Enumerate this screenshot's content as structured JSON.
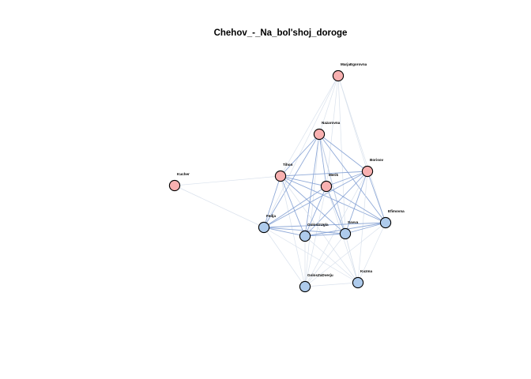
{
  "title": "Chehov_-_Na_bol'shoj_doroge",
  "colors": {
    "group_a": "#f8b0b0",
    "group_b": "#aecbec",
    "node_stroke": "#000000",
    "edge_light": "#d5deea",
    "edge_strong": "#7c9bd1"
  },
  "nodes": [
    {
      "id": "MarjaEgorovna",
      "label": "MarjaEgorovna",
      "group": "a"
    },
    {
      "id": "Nazarovna",
      "label": "Nazarovna",
      "group": "a"
    },
    {
      "id": "Borisov",
      "label": "Borisov",
      "group": "a"
    },
    {
      "id": "Tihon",
      "label": "Tihon",
      "group": "a"
    },
    {
      "id": "Merik",
      "label": "Merik",
      "group": "a"
    },
    {
      "id": "Kucher",
      "label": "Kucher",
      "group": "a"
    },
    {
      "id": "Fedja",
      "label": "Fedja",
      "group": "b"
    },
    {
      "id": "GolosIzUgla",
      "label": "GolosIzUgla",
      "group": "b"
    },
    {
      "id": "Savva",
      "label": "Savva",
      "group": "b"
    },
    {
      "id": "Efimovna",
      "label": "Efimovna",
      "group": "b"
    },
    {
      "id": "GolosZaDverju",
      "label": "GolosZaDverju",
      "group": "b"
    },
    {
      "id": "Kuzma",
      "label": "Kuzma",
      "group": "b"
    }
  ],
  "edges": [
    {
      "source": "MarjaEgorovna",
      "target": "Nazarovna",
      "strength": "light"
    },
    {
      "source": "MarjaEgorovna",
      "target": "Borisov",
      "strength": "light"
    },
    {
      "source": "MarjaEgorovna",
      "target": "Tihon",
      "strength": "light"
    },
    {
      "source": "MarjaEgorovna",
      "target": "Merik",
      "strength": "light"
    },
    {
      "source": "MarjaEgorovna",
      "target": "Efimovna",
      "strength": "light"
    },
    {
      "source": "MarjaEgorovna",
      "target": "Savva",
      "strength": "light"
    },
    {
      "source": "MarjaEgorovna",
      "target": "Fedja",
      "strength": "light"
    },
    {
      "source": "Kucher",
      "target": "Tihon",
      "strength": "light"
    },
    {
      "source": "Kucher",
      "target": "Fedja",
      "strength": "light"
    },
    {
      "source": "Nazarovna",
      "target": "Tihon",
      "strength": "strong"
    },
    {
      "source": "Nazarovna",
      "target": "Borisov",
      "strength": "strong"
    },
    {
      "source": "Nazarovna",
      "target": "Merik",
      "strength": "strong"
    },
    {
      "source": "Nazarovna",
      "target": "Fedja",
      "strength": "strong"
    },
    {
      "source": "Nazarovna",
      "target": "GolosIzUgla",
      "strength": "strong"
    },
    {
      "source": "Nazarovna",
      "target": "Savva",
      "strength": "strong"
    },
    {
      "source": "Nazarovna",
      "target": "Efimovna",
      "strength": "strong"
    },
    {
      "source": "Nazarovna",
      "target": "Kuzma",
      "strength": "light"
    },
    {
      "source": "Nazarovna",
      "target": "GolosZaDverju",
      "strength": "light"
    },
    {
      "source": "Tihon",
      "target": "Borisov",
      "strength": "strong"
    },
    {
      "source": "Tihon",
      "target": "Merik",
      "strength": "strong"
    },
    {
      "source": "Tihon",
      "target": "Fedja",
      "strength": "strong"
    },
    {
      "source": "Tihon",
      "target": "GolosIzUgla",
      "strength": "strong"
    },
    {
      "source": "Tihon",
      "target": "Savva",
      "strength": "strong"
    },
    {
      "source": "Tihon",
      "target": "Efimovna",
      "strength": "strong"
    },
    {
      "source": "Tihon",
      "target": "Kuzma",
      "strength": "light"
    },
    {
      "source": "Tihon",
      "target": "GolosZaDverju",
      "strength": "light"
    },
    {
      "source": "Borisov",
      "target": "Merik",
      "strength": "strong"
    },
    {
      "source": "Borisov",
      "target": "Fedja",
      "strength": "strong"
    },
    {
      "source": "Borisov",
      "target": "GolosIzUgla",
      "strength": "strong"
    },
    {
      "source": "Borisov",
      "target": "Savva",
      "strength": "strong"
    },
    {
      "source": "Borisov",
      "target": "Efimovna",
      "strength": "strong"
    },
    {
      "source": "Borisov",
      "target": "Kuzma",
      "strength": "light"
    },
    {
      "source": "Borisov",
      "target": "GolosZaDverju",
      "strength": "light"
    },
    {
      "source": "Merik",
      "target": "Fedja",
      "strength": "strong"
    },
    {
      "source": "Merik",
      "target": "GolosIzUgla",
      "strength": "strong"
    },
    {
      "source": "Merik",
      "target": "Savva",
      "strength": "strong"
    },
    {
      "source": "Merik",
      "target": "Efimovna",
      "strength": "strong"
    },
    {
      "source": "Merik",
      "target": "Kuzma",
      "strength": "light"
    },
    {
      "source": "Merik",
      "target": "GolosZaDverju",
      "strength": "light"
    },
    {
      "source": "Fedja",
      "target": "GolosIzUgla",
      "strength": "strong"
    },
    {
      "source": "Fedja",
      "target": "Savva",
      "strength": "strong"
    },
    {
      "source": "Fedja",
      "target": "Efimovna",
      "strength": "strong"
    },
    {
      "source": "Fedja",
      "target": "GolosZaDverju",
      "strength": "light"
    },
    {
      "source": "Fedja",
      "target": "Kuzma",
      "strength": "light"
    },
    {
      "source": "GolosIzUgla",
      "target": "Savva",
      "strength": "strong"
    },
    {
      "source": "GolosIzUgla",
      "target": "Efimovna",
      "strength": "strong"
    },
    {
      "source": "GolosIzUgla",
      "target": "GolosZaDverju",
      "strength": "light"
    },
    {
      "source": "GolosIzUgla",
      "target": "Kuzma",
      "strength": "light"
    },
    {
      "source": "Savva",
      "target": "Efimovna",
      "strength": "strong"
    },
    {
      "source": "Savva",
      "target": "GolosZaDverju",
      "strength": "light"
    },
    {
      "source": "Savva",
      "target": "Kuzma",
      "strength": "light"
    },
    {
      "source": "Efimovna",
      "target": "GolosZaDverju",
      "strength": "light"
    },
    {
      "source": "Efimovna",
      "target": "Kuzma",
      "strength": "light"
    },
    {
      "source": "GolosZaDverju",
      "target": "Kuzma",
      "strength": "light"
    }
  ]
}
